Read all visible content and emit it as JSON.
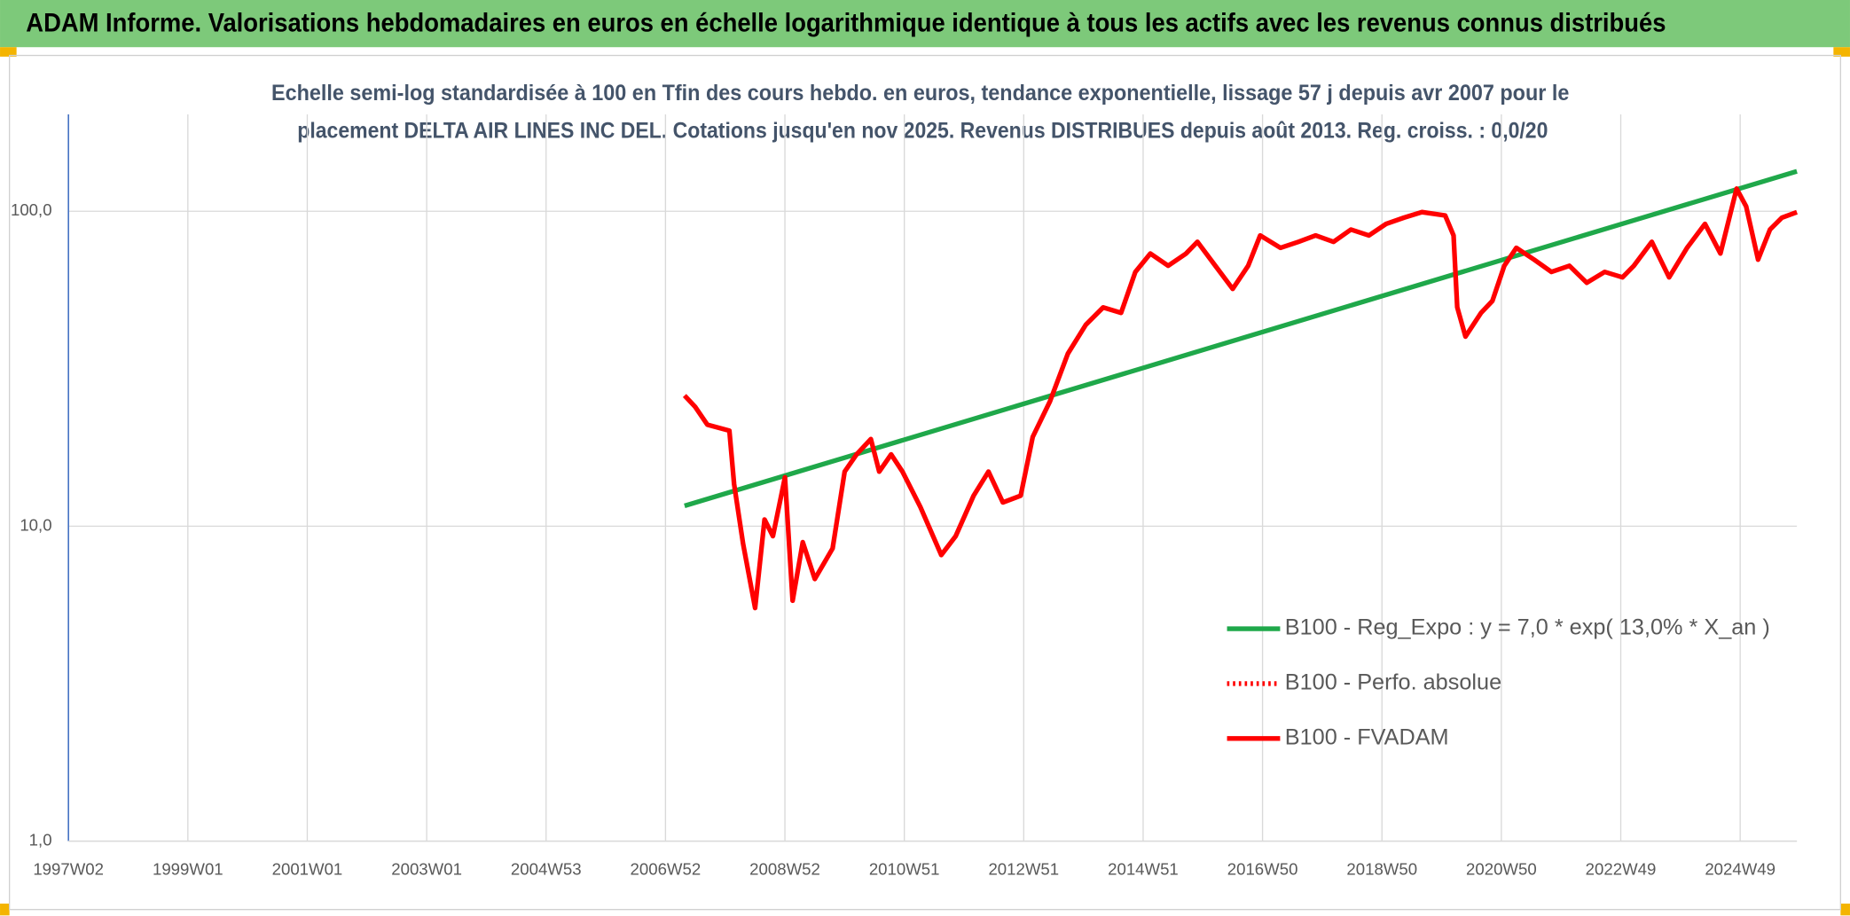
{
  "chart_data": {
    "type": "line",
    "title": "ADAM Informe. Valorisations hebdomadaires en euros en échelle logarithmique identique à tous les actifs avec les revenus connus distribués",
    "subtitle": [
      "Echelle semi-log standardisée à 100 en Tfin des cours hebdo. en euros, tendance exponentielle, lissage 57 j depuis avr 2007 pour le",
      "placement DELTA AIR LINES INC DEL. Cotations jusqu'en nov 2025. Revenus DISTRIBUES depuis août 2013. Reg. croiss. : 0,0/20"
    ],
    "log_y": true,
    "grid": true,
    "xlim": [
      1997.0,
      2025.95
    ],
    "xticks": [
      {
        "value": 1997.0,
        "label": "1997W02"
      },
      {
        "value": 1999.0,
        "label": "1999W01"
      },
      {
        "value": 2001.0,
        "label": "2001W01"
      },
      {
        "value": 2003.0,
        "label": "2003W01"
      },
      {
        "value": 2005.0,
        "label": "2004W53"
      },
      {
        "value": 2007.0,
        "label": "2006W52"
      },
      {
        "value": 2009.0,
        "label": "2008W52"
      },
      {
        "value": 2011.0,
        "label": "2010W51"
      },
      {
        "value": 2013.0,
        "label": "2012W51"
      },
      {
        "value": 2015.0,
        "label": "2014W51"
      },
      {
        "value": 2017.0,
        "label": "2016W50"
      },
      {
        "value": 2019.0,
        "label": "2018W50"
      },
      {
        "value": 2021.0,
        "label": "2020W50"
      },
      {
        "value": 2023.0,
        "label": "2022W49"
      },
      {
        "value": 2025.0,
        "label": "2024W49"
      }
    ],
    "ylim": [
      1,
      203
    ],
    "yticks": [
      {
        "value": 1,
        "label": "1,0"
      },
      {
        "value": 10,
        "label": "10,0"
      },
      {
        "value": 100,
        "label": "100,0"
      }
    ],
    "series": [
      {
        "name": "B100 - Reg_Expo : y = 7,0 * exp( 13,0% *  X_an )",
        "color": "#1fa84a",
        "dash": "solid",
        "x": [
          2007.32,
          2025.95
        ],
        "values": [
          11.6,
          134
        ]
      },
      {
        "name": "B100 - Perfo. absolue",
        "color": "#ff0000",
        "dash": "dotted",
        "x": [],
        "values": []
      },
      {
        "name": "B100 - FVADAM",
        "color": "#ff0000",
        "dash": "solid",
        "x": [
          2007.32,
          2007.5,
          2007.7,
          2008.07,
          2008.15,
          2008.3,
          2008.5,
          2008.66,
          2008.8,
          2009.0,
          2009.13,
          2009.3,
          2009.5,
          2009.8,
          2010.0,
          2010.2,
          2010.44,
          2010.58,
          2010.78,
          2010.97,
          2011.27,
          2011.62,
          2011.86,
          2012.16,
          2012.41,
          2012.65,
          2012.95,
          2013.15,
          2013.44,
          2013.74,
          2014.04,
          2014.33,
          2014.63,
          2014.87,
          2015.12,
          2015.42,
          2015.72,
          2015.91,
          2016.21,
          2016.5,
          2016.76,
          2016.96,
          2017.3,
          2017.6,
          2017.89,
          2018.19,
          2018.48,
          2018.78,
          2019.07,
          2019.37,
          2019.67,
          2020.06,
          2020.2,
          2020.26,
          2020.4,
          2020.66,
          2020.85,
          2021.05,
          2021.25,
          2021.55,
          2021.84,
          2022.14,
          2022.43,
          2022.73,
          2023.03,
          2023.22,
          2023.52,
          2023.81,
          2024.11,
          2024.41,
          2024.67,
          2024.94,
          2025.1,
          2025.3,
          2025.5,
          2025.7,
          2025.95
        ],
        "values": [
          26,
          23.9,
          21,
          20.1,
          13.6,
          8.8,
          5.5,
          10.5,
          9.3,
          14.3,
          5.8,
          8.9,
          6.8,
          8.5,
          14.9,
          16.9,
          18.9,
          14.9,
          16.9,
          14.9,
          11.5,
          8.1,
          9.3,
          12.5,
          14.9,
          11.9,
          12.5,
          19.2,
          24.9,
          35.3,
          43.6,
          49.5,
          47.6,
          64.2,
          73.4,
          67.1,
          73.4,
          80,
          67.1,
          56.7,
          67.1,
          83.8,
          76.5,
          80,
          83.8,
          80,
          87.5,
          83.8,
          91.2,
          95.4,
          99.4,
          96.9,
          83.8,
          49.6,
          40,
          47.6,
          51.9,
          67.1,
          76.5,
          70.2,
          64.2,
          67.1,
          59.3,
          64.2,
          61.7,
          67.1,
          80,
          61.7,
          76.5,
          91.2,
          73.4,
          118,
          103.6,
          70.2,
          87.5,
          95.4,
          99.4
        ]
      }
    ]
  }
}
